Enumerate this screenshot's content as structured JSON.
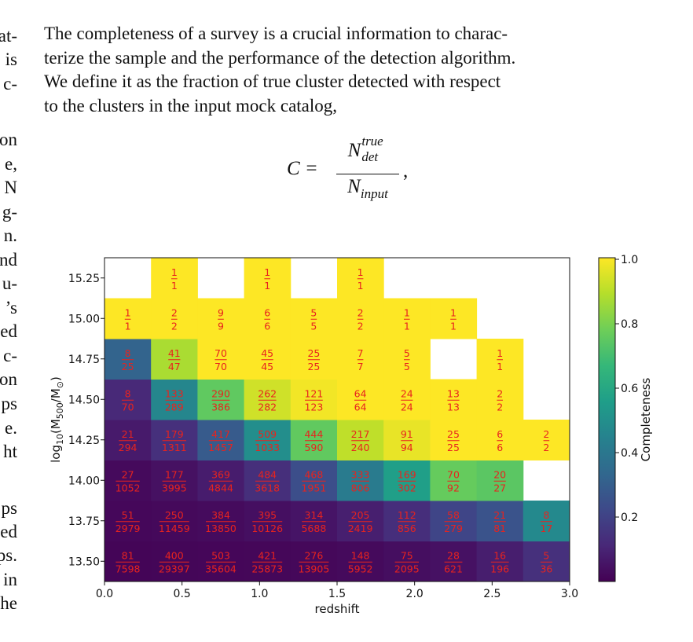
{
  "margin_fragments": [
    "at-",
    "is",
    "c-",
    "on",
    "e,",
    "N",
    "g-",
    "n.",
    "nd",
    "u-",
    "’s",
    "ed",
    "c-",
    "on",
    "ps",
    "e.",
    "ht",
    "ps",
    "ed",
    "ps.",
    "in",
    "he"
  ],
  "paragraph": {
    "lines": [
      "The completeness of a survey is a crucial information to charac-",
      "terize the sample and the performance of the detection algorithm.",
      "We define it as the fraction of true cluster detected with respect",
      "to the clusters in the input mock catalog,"
    ]
  },
  "formula": {
    "lhs": "C =",
    "numerator_base": "N",
    "numerator_sup": "true",
    "numerator_sub": "det",
    "denominator_base": "N",
    "denominator_sub": "input",
    "tail": ","
  },
  "chart_data": {
    "type": "heatmap",
    "xlabel": "redshift",
    "ylabel": "log10(M500/M⊙)",
    "xlim": [
      0.0,
      3.0
    ],
    "ylim": [
      13.375,
      15.375
    ],
    "x_ticks": [
      "0.0",
      "0.5",
      "1.0",
      "1.5",
      "2.0",
      "2.5",
      "3.0"
    ],
    "y_ticks": [
      "13.50",
      "13.75",
      "14.00",
      "14.25",
      "14.50",
      "14.75",
      "15.00",
      "15.25"
    ],
    "x_bin_edges": [
      0.0,
      0.3,
      0.6,
      0.9,
      1.2,
      1.5,
      1.8,
      2.1,
      2.4,
      2.7,
      3.0
    ],
    "y_bin_centers": [
      13.5,
      13.625,
      13.75,
      13.875,
      14.0,
      14.125,
      14.25,
      14.375,
      14.5,
      14.625,
      14.75,
      14.875,
      15.0
    ],
    "colorbar": {
      "label": "Completeness",
      "ticks": [
        "0.2",
        "0.4",
        "0.6",
        "0.8",
        "1.0"
      ],
      "range": [
        0.0,
        1.0
      ],
      "colormap": [
        "#440154",
        "#482878",
        "#3e4989",
        "#31688e",
        "#26828e",
        "#1f9e89",
        "#35b779",
        "#6ece58",
        "#b5de2b",
        "#fde725"
      ]
    },
    "label_color": "#e8231e",
    "bins": [
      {
        "row": 0,
        "cells": [
          [
            81,
            7598
          ],
          [
            400,
            29397
          ],
          [
            503,
            35604
          ],
          [
            421,
            25873
          ],
          [
            276,
            13905
          ],
          [
            148,
            5952
          ],
          [
            75,
            2095
          ],
          [
            28,
            621
          ],
          [
            16,
            196
          ],
          [
            5,
            36
          ]
        ]
      },
      {
        "row": 1,
        "cells": [
          [
            51,
            2979
          ],
          [
            250,
            11459
          ],
          [
            384,
            13850
          ],
          [
            395,
            10126
          ],
          [
            314,
            5688
          ],
          [
            205,
            2419
          ],
          [
            112,
            856
          ],
          [
            58,
            279
          ],
          [
            21,
            81
          ],
          [
            8,
            17
          ]
        ]
      },
      {
        "row": 2,
        "cells": [
          [
            27,
            1052
          ],
          [
            177,
            3995
          ],
          [
            369,
            4844
          ],
          [
            484,
            3618
          ],
          [
            468,
            1951
          ],
          [
            333,
            806
          ],
          [
            169,
            302
          ],
          [
            70,
            92
          ],
          [
            20,
            27
          ],
          null
        ]
      },
      {
        "row": 3,
        "cells": [
          [
            21,
            294
          ],
          [
            179,
            1311
          ],
          [
            417,
            1457
          ],
          [
            509,
            1033
          ],
          [
            444,
            590
          ],
          [
            217,
            240
          ],
          [
            91,
            94
          ],
          [
            25,
            25
          ],
          [
            6,
            6
          ],
          [
            2,
            2
          ]
        ]
      },
      {
        "row": 4,
        "cells": [
          [
            8,
            70
          ],
          [
            133,
            289
          ],
          [
            290,
            386
          ],
          [
            262,
            282
          ],
          [
            121,
            123
          ],
          [
            64,
            64
          ],
          [
            24,
            24
          ],
          [
            13,
            13
          ],
          [
            2,
            2
          ],
          null
        ]
      },
      {
        "row": 5,
        "cells": [
          [
            8,
            25
          ],
          [
            41,
            47
          ],
          [
            70,
            70
          ],
          [
            45,
            45
          ],
          [
            25,
            25
          ],
          [
            7,
            7
          ],
          [
            5,
            5
          ],
          null,
          [
            1,
            1
          ],
          null
        ]
      },
      {
        "row": 6,
        "cells": [
          [
            1,
            1
          ],
          [
            2,
            2
          ],
          [
            9,
            9
          ],
          [
            6,
            6
          ],
          [
            5,
            5
          ],
          [
            2,
            2
          ],
          [
            1,
            1
          ],
          [
            1,
            1
          ],
          null,
          null
        ]
      },
      {
        "row": 7,
        "cells": [
          null,
          [
            1,
            1
          ],
          null,
          [
            1,
            1
          ],
          null,
          [
            1,
            1
          ],
          null,
          null,
          null,
          null
        ]
      }
    ]
  }
}
